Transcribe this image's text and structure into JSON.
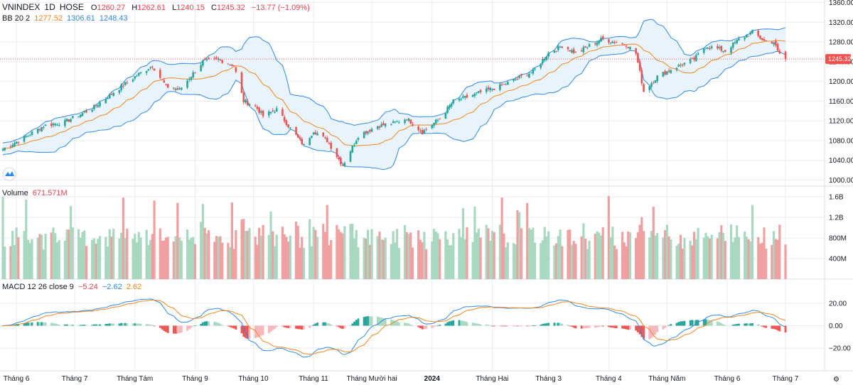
{
  "legend": {
    "symbol": "VNINDEX",
    "interval": "1D",
    "exchange": "HOSE",
    "o_label": "O",
    "o_value": "1260.27",
    "h_label": "H",
    "h_value": "1262.61",
    "l_label": "L",
    "l_value": "1240.15",
    "c_label": "C",
    "c_value": "1245.32",
    "change": "−13.77 (−1.09%)",
    "bb_label": "BB 20 2",
    "bb_basis": "1277.52",
    "bb_upper": "1306.61",
    "bb_lower": "1248.43",
    "volume_label": "Volume",
    "volume_value": "671.571M",
    "macd_label": "MACD 12 26 close 9",
    "macd_hist": "−5.24",
    "macd_line": "−2.62",
    "macd_signal": "2.62"
  },
  "price_tag": "1245.32",
  "colors": {
    "up": "#26a69a",
    "up_vol": "#a8d8c0",
    "down": "#ef5350",
    "down_vol": "#f0a0a0",
    "bb_basis": "#f0861e",
    "bb_band": "#2f8ae8",
    "bb_fill": "#e9f3fc",
    "macd": "#2f8ae8",
    "signal": "#f0861e",
    "hist_up": "#26a69a",
    "hist_up_light": "#a8d8c0",
    "hist_down": "#ef5350",
    "hist_down_light": "#f5b7bb",
    "grid": "#e9ecf2"
  },
  "chart_data": [
    {
      "type": "candlestick",
      "title": "VNINDEX 1D HOSE",
      "y_ticks": [
        "1000.00",
        "1040.00",
        "1080.00",
        "1120.00",
        "1160.00",
        "1200.00",
        "1240.00",
        "1280.00",
        "1320.00",
        "1360.00"
      ],
      "ylim": [
        990,
        1368
      ],
      "x_ticks": [
        "Tháng 6",
        "Tháng 7",
        "Tháng Tám",
        "Tháng 9",
        "Tháng 10",
        "Tháng 11",
        "Tháng Mười hai",
        "2024",
        "Tháng Hai",
        "Tháng 3",
        "Tháng 4",
        "Tháng Năm",
        "Tháng 6",
        "Tháng 7"
      ],
      "x_tick_dates": [
        "2023-06-01",
        "2023-07-01",
        "2023-08-01",
        "2023-09-01",
        "2023-10-01",
        "2023-11-01",
        "2023-12-01",
        "2024-01-01",
        "2024-02-01",
        "2024-03-01",
        "2024-04-01",
        "2024-05-01",
        "2024-06-01",
        "2024-07-01"
      ],
      "date_range": [
        "2023-05-25",
        "2024-07-01"
      ],
      "close_anchors": [
        [
          "2023-05-25",
          1063
        ],
        [
          "2023-06-06",
          1088
        ],
        [
          "2023-06-15",
          1110
        ],
        [
          "2023-06-26",
          1118
        ],
        [
          "2023-07-10",
          1145
        ],
        [
          "2023-07-20",
          1175
        ],
        [
          "2023-08-03",
          1215
        ],
        [
          "2023-08-10",
          1232
        ],
        [
          "2023-08-17",
          1190
        ],
        [
          "2023-08-24",
          1183
        ],
        [
          "2023-09-05",
          1240
        ],
        [
          "2023-09-13",
          1245
        ],
        [
          "2023-09-21",
          1232
        ],
        [
          "2023-09-26",
          1160
        ],
        [
          "2023-10-02",
          1150
        ],
        [
          "2023-10-06",
          1130
        ],
        [
          "2023-10-13",
          1143
        ],
        [
          "2023-10-20",
          1105
        ],
        [
          "2023-10-27",
          1070
        ],
        [
          "2023-11-01",
          1100
        ],
        [
          "2023-11-08",
          1080
        ],
        [
          "2023-11-16",
          1030
        ],
        [
          "2023-11-20",
          1060
        ],
        [
          "2023-11-24",
          1090
        ],
        [
          "2023-12-04",
          1110
        ],
        [
          "2023-12-12",
          1115
        ],
        [
          "2023-12-19",
          1125
        ],
        [
          "2023-12-27",
          1097
        ],
        [
          "2024-01-05",
          1125
        ],
        [
          "2024-01-12",
          1160
        ],
        [
          "2024-01-19",
          1168
        ],
        [
          "2024-01-26",
          1178
        ],
        [
          "2024-02-02",
          1186
        ],
        [
          "2024-02-08",
          1195
        ],
        [
          "2024-02-22",
          1220
        ],
        [
          "2024-03-01",
          1258
        ],
        [
          "2024-03-08",
          1272
        ],
        [
          "2024-03-15",
          1258
        ],
        [
          "2024-03-20",
          1268
        ],
        [
          "2024-03-28",
          1285
        ],
        [
          "2024-04-05",
          1280
        ],
        [
          "2024-04-10",
          1275
        ],
        [
          "2024-04-15",
          1257
        ],
        [
          "2024-04-19",
          1180
        ],
        [
          "2024-04-26",
          1210
        ],
        [
          "2024-05-06",
          1230
        ],
        [
          "2024-05-15",
          1245
        ],
        [
          "2024-05-21",
          1272
        ],
        [
          "2024-05-31",
          1262
        ],
        [
          "2024-06-07",
          1285
        ],
        [
          "2024-06-14",
          1300
        ],
        [
          "2024-06-20",
          1282
        ],
        [
          "2024-06-25",
          1280
        ],
        [
          "2024-06-27",
          1260
        ],
        [
          "2024-07-01",
          1245
        ]
      ],
      "bb": {
        "length": 20,
        "mult": 2,
        "basis": 1277.52,
        "upper": 1306.61,
        "lower": 1248.43
      }
    },
    {
      "type": "bar",
      "title": "Volume",
      "y_ticks": [
        "400M",
        "800M",
        "1.2B",
        "1.6B"
      ],
      "ylim": [
        0,
        1750
      ],
      "last_value": "671.571M"
    },
    {
      "type": "line",
      "title": "MACD 12 26 close 9",
      "y_ticks": [
        "20.00",
        "0.00",
        "−20.00"
      ],
      "ylim": [
        -35,
        30
      ],
      "series": [
        {
          "name": "MACD",
          "last": -2.62
        },
        {
          "name": "Signal",
          "last": 2.62
        },
        {
          "name": "Histogram",
          "last": -5.24
        }
      ]
    }
  ]
}
